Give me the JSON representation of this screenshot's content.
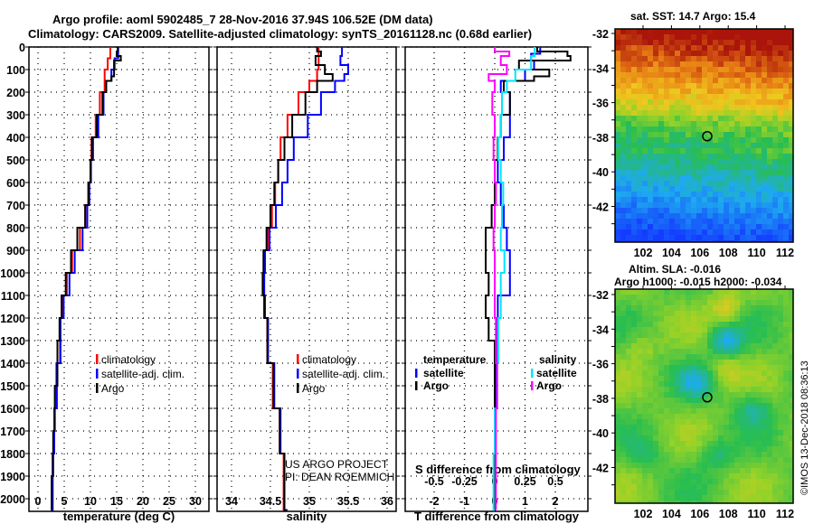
{
  "title_line1": "Argo profile: aoml 5902485_7 28-Nov-2016 37.94S 106.52E (DM data)",
  "title_line2": "Climatology: CARS2009. Satellite-adjusted climatology: synTS_20161128.nc (0.68d earlier)",
  "credit": "©IMOS 13-Dec-2018 08:36:13",
  "project_line1": "US ARGO PROJECT",
  "project_line2": "PI: DEAN ROEMMICH",
  "colors": {
    "climatology": "#ff0000",
    "satellite": "#0000ff",
    "argo": "#000000",
    "sal_satellite": "#00e5ff",
    "sal_argo": "#ff00ff"
  },
  "chart_data": [
    {
      "type": "line",
      "xlabel": "temperature (deg C)",
      "ylabel": "depth",
      "xlim": [
        -2,
        32
      ],
      "ylim": [
        2050,
        0
      ],
      "xticks": [
        0,
        5,
        10,
        15,
        20,
        25,
        30
      ],
      "yticks": [
        0,
        100,
        200,
        300,
        400,
        500,
        600,
        700,
        800,
        900,
        1000,
        1100,
        1200,
        1300,
        1400,
        1500,
        1600,
        1700,
        1800,
        1900,
        2000
      ],
      "legend": [
        "climatology",
        "satellite-adj. clim.",
        "Argo"
      ],
      "legend_placement": "bottom-right",
      "grid": true,
      "series": [
        {
          "name": "climatology",
          "depth": [
            0,
            50,
            100,
            200,
            300,
            400,
            500,
            600,
            700,
            800,
            900,
            1000,
            1100,
            1200,
            1400,
            1600,
            1800,
            2050
          ],
          "values": [
            13.8,
            13.3,
            12.7,
            11.8,
            11,
            10.2,
            10,
            9.6,
            9,
            8,
            6.5,
            5.5,
            4.8,
            4.2,
            3.5,
            3.1,
            2.8,
            2.6
          ]
        },
        {
          "name": "satellite-adj. clim.",
          "depth": [
            0,
            50,
            100,
            150,
            200,
            300,
            400,
            500,
            600,
            700,
            800,
            900,
            1000,
            1100,
            1200,
            1400,
            1600,
            1800,
            2050
          ],
          "values": [
            15.3,
            14.6,
            14,
            13,
            12.5,
            11.5,
            10.5,
            10.1,
            9.8,
            9.4,
            8.5,
            7,
            6,
            4.9,
            4.3,
            3.6,
            3.1,
            2.8,
            2.6
          ]
        },
        {
          "name": "Argo",
          "depth": [
            0,
            20,
            40,
            60,
            100,
            130,
            150,
            200,
            300,
            400,
            500,
            600,
            700,
            800,
            900,
            1000,
            1100,
            1200,
            1300,
            1500,
            1700,
            1900,
            2050
          ],
          "values": [
            15.2,
            15,
            15.8,
            14.5,
            14.5,
            14,
            13,
            12.3,
            11.2,
            10.3,
            10,
            9.6,
            9,
            7.5,
            6.3,
            5.3,
            4.5,
            4.1,
            3.7,
            3.2,
            2.9,
            2.6,
            2.5
          ]
        }
      ]
    },
    {
      "type": "line",
      "xlabel": "salinity",
      "xlim": [
        33.8,
        36.1
      ],
      "ylim": [
        2050,
        0
      ],
      "xticks": [
        34,
        34.5,
        35,
        35.5,
        36
      ],
      "legend": [
        "climatology",
        "satellite-adj. clim.",
        "Argo"
      ],
      "legend_placement": "bottom-right",
      "grid": true,
      "series": [
        {
          "name": "climatology",
          "depth": [
            0,
            100,
            150,
            200,
            300,
            400,
            500,
            600,
            700,
            800,
            900,
            1000,
            1100,
            1200,
            1400,
            1600,
            1800,
            2050
          ],
          "values": [
            35.12,
            35.1,
            35.0,
            34.86,
            34.72,
            34.63,
            34.6,
            34.56,
            34.52,
            34.47,
            34.43,
            34.42,
            34.43,
            34.46,
            34.53,
            34.62,
            34.67,
            34.71
          ]
        },
        {
          "name": "satellite-adj. clim.",
          "depth": [
            0,
            40,
            80,
            120,
            150,
            200,
            300,
            400,
            500,
            600,
            700,
            800,
            900,
            1000,
            1100,
            1200,
            1400,
            1600,
            1800,
            2050
          ],
          "values": [
            35.42,
            35.4,
            35.5,
            35.45,
            35.33,
            35.15,
            34.98,
            34.8,
            34.72,
            34.65,
            34.57,
            34.49,
            34.43,
            34.42,
            34.43,
            34.47,
            34.55,
            34.63,
            34.68,
            34.72
          ]
        },
        {
          "name": "Argo",
          "depth": [
            0,
            20,
            40,
            80,
            120,
            150,
            200,
            300,
            400,
            500,
            600,
            700,
            800,
            900,
            1000,
            1100,
            1200,
            1400,
            1600,
            1800,
            2050
          ],
          "values": [
            35.1,
            35.15,
            35.08,
            35.2,
            35.3,
            35.1,
            34.95,
            34.78,
            34.68,
            34.6,
            34.55,
            34.5,
            34.45,
            34.41,
            34.4,
            34.42,
            34.46,
            34.54,
            34.62,
            34.68,
            34.71
          ]
        }
      ]
    },
    {
      "type": "line",
      "xlabel": "T difference from climatology",
      "xlabel2": "S difference from climatology",
      "xlim": [
        -3,
        3
      ],
      "ylim": [
        2050,
        0
      ],
      "xticks": [
        -2,
        -1,
        0,
        1,
        2
      ],
      "xticks2": [
        -0.5,
        -0.25,
        0,
        0.25,
        0.5
      ],
      "legend_temperature_title": "temperature",
      "legend_salinity_title": "salinity",
      "legend_temperature": [
        "satellite",
        "Argo"
      ],
      "legend_salinity": [
        "satellite",
        "Argo"
      ],
      "grid": true,
      "series": [
        {
          "name": "temperature satellite",
          "depth": [
            0,
            30,
            60,
            100,
            150,
            200,
            300,
            400,
            500,
            600,
            700,
            800,
            900,
            1000,
            1100,
            1200,
            1400,
            1600,
            1800,
            2050
          ],
          "values": [
            1.5,
            1.2,
            1.3,
            1.0,
            0.2,
            0.5,
            0.5,
            0.3,
            0.1,
            0.2,
            0.3,
            0.4,
            0.5,
            0.5,
            0.1,
            0.1,
            0.05,
            0.03,
            0.0,
            0.0
          ]
        },
        {
          "name": "temperature Argo",
          "depth": [
            0,
            20,
            40,
            60,
            100,
            130,
            150,
            200,
            300,
            400,
            500,
            600,
            700,
            800,
            900,
            1000,
            1100,
            1200,
            1300,
            1400,
            1600,
            1800,
            2050
          ],
          "values": [
            1.4,
            2.4,
            2.5,
            0.8,
            1.8,
            1.3,
            0.3,
            0.5,
            0.2,
            0.1,
            0.0,
            0.0,
            -0.1,
            -0.3,
            -0.3,
            -0.2,
            -0.3,
            -0.2,
            0.0,
            0.0,
            0.0,
            0.0,
            -0.05
          ]
        },
        {
          "name": "salinity satellite",
          "depth": [
            0,
            40,
            80,
            100,
            150,
            200,
            300,
            400,
            500,
            600,
            700,
            800,
            900,
            1000,
            1200,
            1400,
            1600,
            1800,
            2050
          ],
          "values": [
            0.33,
            0.3,
            0.3,
            0.17,
            0.1,
            0.06,
            0.05,
            0.03,
            0.05,
            0.07,
            0.06,
            0.05,
            0.08,
            0.05,
            0.03,
            0.02,
            0.0,
            -0.01,
            0.0
          ]
        },
        {
          "name": "salinity Argo",
          "depth": [
            0,
            20,
            40,
            80,
            120,
            150,
            200,
            300,
            400,
            500,
            600,
            700,
            800,
            900,
            1000,
            1200,
            1400,
            1600,
            1800,
            2050
          ],
          "values": [
            0.0,
            0.12,
            0.05,
            0.1,
            -0.05,
            0.0,
            -0.02,
            0.0,
            -0.01,
            0.0,
            0.01,
            0.0,
            -0.01,
            0.0,
            0.0,
            0.01,
            0.02,
            0.01,
            0.01,
            0.01
          ]
        }
      ]
    },
    {
      "type": "heatmap",
      "title": "sat. SST: 14.7 Argo: 15.4",
      "xticks": [
        102,
        104,
        106,
        108,
        110,
        112
      ],
      "yticks": [
        -32,
        -34,
        -36,
        -38,
        -40,
        -42
      ],
      "xlim": [
        100.4,
        113
      ],
      "ylim": [
        -44.1,
        -31.7
      ],
      "marker": {
        "lon": 106.52,
        "lat": -37.94
      }
    },
    {
      "type": "heatmap",
      "title": "Altim. SLA: -0.016",
      "subtitle": "Argo h1000: -0.015 h2000: -0.034",
      "xticks": [
        102,
        104,
        106,
        108,
        110,
        112
      ],
      "yticks": [
        -32,
        -34,
        -36,
        -38,
        -40,
        -42
      ],
      "xlim": [
        100.4,
        113
      ],
      "ylim": [
        -44.1,
        -31.7
      ],
      "marker": {
        "lon": 106.52,
        "lat": -37.94
      }
    }
  ]
}
